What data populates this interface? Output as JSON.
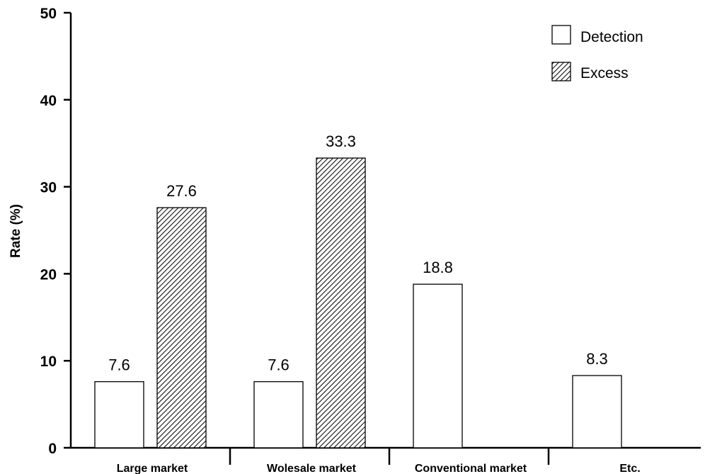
{
  "chart_data": {
    "type": "bar",
    "categories": [
      "Large market",
      "Wolesale market",
      "Conventional market",
      "Etc."
    ],
    "series": [
      {
        "name": "Detection",
        "values": [
          7.6,
          7.6,
          18.8,
          8.3
        ],
        "labels": [
          "7.6",
          "7.6",
          "18.8",
          "8.3"
        ],
        "fill": "#ffffff"
      },
      {
        "name": "Excess",
        "values": [
          27.6,
          33.3,
          null,
          null
        ],
        "labels": [
          "27.6",
          "33.3",
          "",
          ""
        ],
        "fill": "hatch"
      }
    ],
    "ylabel": "Rate (%)",
    "ylim": [
      0,
      50
    ],
    "yticks": [
      "0",
      "10",
      "20",
      "30",
      "40",
      "50"
    ],
    "grid": false,
    "legend": "top-right",
    "colors": {
      "ink": "#000000",
      "background": "#ffffff"
    }
  }
}
